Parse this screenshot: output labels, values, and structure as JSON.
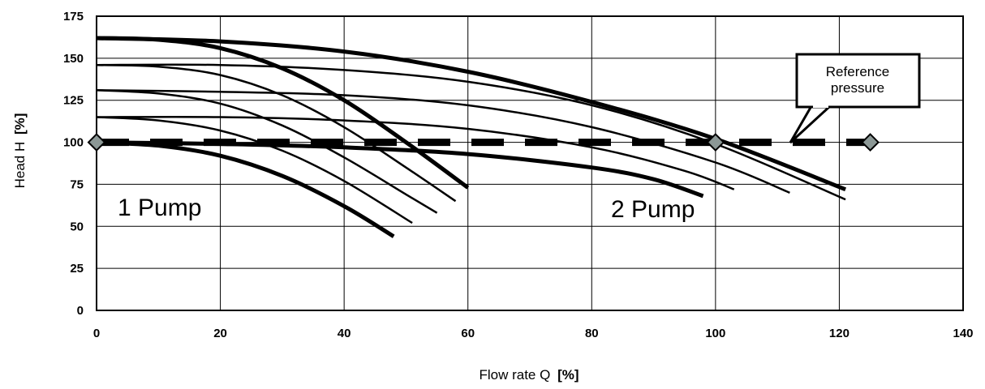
{
  "chart_data": {
    "type": "line",
    "xlabel": "Flow rate Q",
    "xunit": "[%]",
    "ylabel": "Head H",
    "yunit": "[%]",
    "xlim": [
      0,
      140
    ],
    "ylim": [
      0,
      175
    ],
    "xticks": [
      0,
      20,
      40,
      60,
      80,
      100,
      120,
      140
    ],
    "yticks": [
      0,
      25,
      50,
      75,
      100,
      125,
      150,
      175
    ],
    "grid": true,
    "annotations": {
      "group_1": "1 Pump",
      "group_2": "2 Pump",
      "callout_line1": "Reference",
      "callout_line2": "pressure"
    },
    "reference_pressure": {
      "y": 100,
      "x_range": [
        0,
        125
      ],
      "markers_x": [
        0,
        100,
        125
      ]
    },
    "series": [
      {
        "group": "1 Pump",
        "weight": "bold",
        "points": [
          [
            0,
            100
          ],
          [
            10,
            98
          ],
          [
            20,
            92
          ],
          [
            30,
            80
          ],
          [
            40,
            62
          ],
          [
            48,
            44
          ]
        ]
      },
      {
        "group": "1 Pump",
        "weight": "thin",
        "points": [
          [
            0,
            115
          ],
          [
            10,
            113
          ],
          [
            20,
            107
          ],
          [
            30,
            95
          ],
          [
            40,
            77
          ],
          [
            51,
            52
          ]
        ]
      },
      {
        "group": "1 Pump",
        "weight": "thin",
        "points": [
          [
            0,
            131
          ],
          [
            10,
            129
          ],
          [
            20,
            123
          ],
          [
            30,
            110
          ],
          [
            40,
            91
          ],
          [
            50,
            69
          ],
          [
            55,
            58
          ]
        ]
      },
      {
        "group": "1 Pump",
        "weight": "thin",
        "points": [
          [
            0,
            146
          ],
          [
            10,
            145
          ],
          [
            20,
            140
          ],
          [
            30,
            128
          ],
          [
            40,
            109
          ],
          [
            50,
            85
          ],
          [
            58,
            65
          ]
        ]
      },
      {
        "group": "1 Pump",
        "weight": "bold",
        "points": [
          [
            0,
            162
          ],
          [
            10,
            161
          ],
          [
            20,
            156
          ],
          [
            30,
            144
          ],
          [
            40,
            125
          ],
          [
            50,
            100
          ],
          [
            60,
            73
          ]
        ]
      },
      {
        "group": "2 Pump",
        "weight": "bold",
        "points": [
          [
            0,
            100
          ],
          [
            20,
            99
          ],
          [
            40,
            97
          ],
          [
            60,
            93
          ],
          [
            80,
            85
          ],
          [
            90,
            78
          ],
          [
            98,
            68
          ]
        ]
      },
      {
        "group": "2 Pump",
        "weight": "thin",
        "points": [
          [
            0,
            115
          ],
          [
            20,
            115
          ],
          [
            40,
            113
          ],
          [
            60,
            108
          ],
          [
            80,
            97
          ],
          [
            95,
            83
          ],
          [
            103,
            72
          ]
        ]
      },
      {
        "group": "2 Pump",
        "weight": "thin",
        "points": [
          [
            0,
            131
          ],
          [
            20,
            130
          ],
          [
            40,
            128
          ],
          [
            60,
            122
          ],
          [
            80,
            109
          ],
          [
            100,
            88
          ],
          [
            112,
            70
          ]
        ]
      },
      {
        "group": "2 Pump",
        "weight": "thin",
        "points": [
          [
            0,
            146
          ],
          [
            20,
            146
          ],
          [
            40,
            143
          ],
          [
            60,
            136
          ],
          [
            80,
            122
          ],
          [
            100,
            99
          ],
          [
            121,
            66
          ]
        ]
      },
      {
        "group": "2 Pump",
        "weight": "bold",
        "points": [
          [
            0,
            162
          ],
          [
            20,
            160
          ],
          [
            40,
            154
          ],
          [
            60,
            142
          ],
          [
            80,
            124
          ],
          [
            100,
            102
          ],
          [
            121,
            72
          ]
        ]
      }
    ]
  }
}
